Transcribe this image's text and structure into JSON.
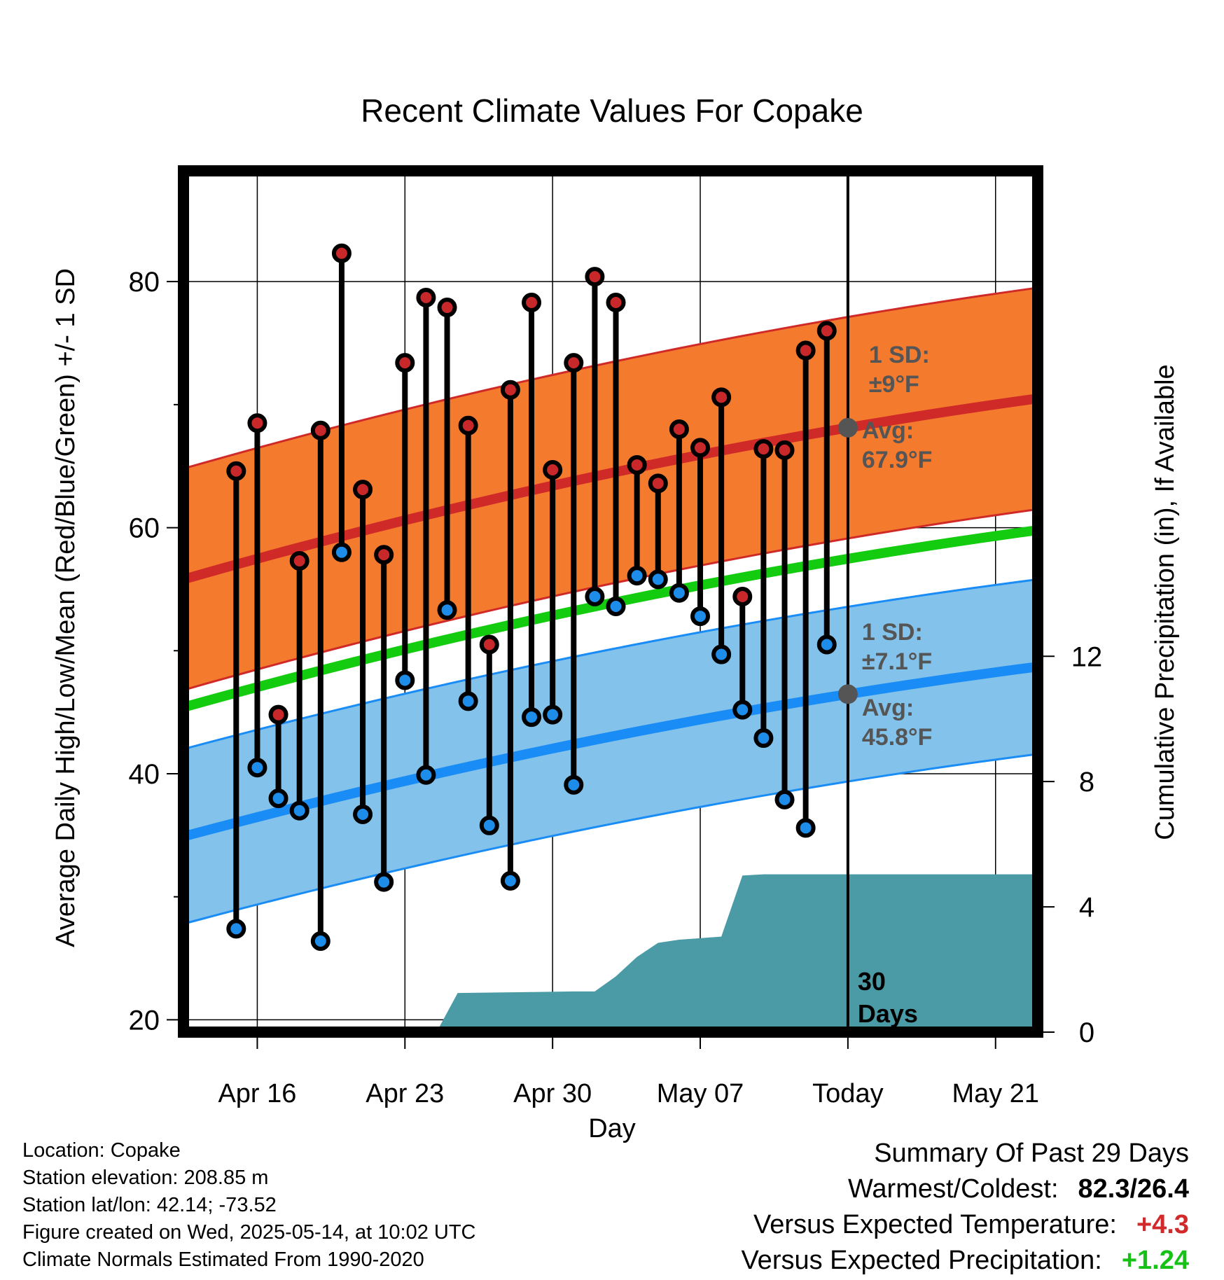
{
  "chart_data": {
    "type": "line",
    "title": "Recent Climate Values For Copake",
    "xlabel": "Day",
    "ylabel": "Average Daily High/Low/Mean (Red/Blue/Green) +/- 1 SD",
    "y2label": "Cumulative Precipitation (in), If Available",
    "x_tick_labels": [
      "Apr 16",
      "Apr 23",
      "Apr 30",
      "May 07",
      "Today",
      "May 21"
    ],
    "x_tick_days": [
      3,
      10,
      17,
      24,
      31,
      38
    ],
    "xlim": [
      -0.5,
      40
    ],
    "ylim": [
      19,
      89
    ],
    "yticks": [
      20,
      40,
      60,
      80
    ],
    "y2lim": [
      0,
      27.5
    ],
    "y2ticks": [
      0,
      4,
      8,
      12
    ],
    "grid": true,
    "today_day": 31,
    "today_label": [
      "30",
      "Days"
    ],
    "normals": {
      "days": [
        -0.5,
        40
      ],
      "high_mean": [
        55.8,
        70.5
      ],
      "high_sd": 9,
      "mean": [
        45.4,
        59.8
      ],
      "low_mean": [
        34.9,
        48.7
      ],
      "low_sd": 7.1
    },
    "observed": {
      "days": [
        2,
        3,
        4,
        5,
        6,
        7,
        8,
        9,
        10,
        11,
        12,
        13,
        14,
        15,
        16,
        17,
        18,
        19,
        20,
        21,
        22,
        23,
        24,
        25,
        26,
        27,
        28,
        29,
        30
      ],
      "highs": [
        64.6,
        68.5,
        44.8,
        57.3,
        67.9,
        82.3,
        63.1,
        57.8,
        73.4,
        78.7,
        77.9,
        68.3,
        50.5,
        71.2,
        78.3,
        64.7,
        73.4,
        80.4,
        78.3,
        65.1,
        63.6,
        68.0,
        66.5,
        70.6,
        54.4,
        66.4,
        66.3,
        74.4,
        76.0
      ],
      "lows": [
        27.4,
        40.5,
        38.0,
        37.0,
        26.4,
        58.0,
        36.7,
        31.2,
        47.6,
        39.9,
        53.3,
        45.9,
        35.8,
        31.3,
        44.6,
        44.8,
        39.1,
        54.4,
        53.6,
        56.1,
        55.8,
        54.7,
        52.8,
        49.7,
        45.2,
        42.9,
        37.9,
        35.6,
        50.5
      ]
    },
    "precipitation": {
      "days": [
        -0.5,
        11.5,
        12.5,
        16,
        18,
        19,
        20,
        21,
        22,
        23,
        24,
        25,
        26,
        27,
        31,
        40
      ],
      "cumulative": [
        0,
        0,
        1.25,
        1.28,
        1.3,
        1.3,
        1.78,
        2.4,
        2.85,
        2.95,
        3.0,
        3.05,
        5.0,
        5.04,
        5.04,
        5.04
      ]
    },
    "annotations": {
      "high_sd_label": "1 SD:",
      "high_sd_value": "±9°F",
      "high_avg_label": "Avg:",
      "high_avg_value": "67.9°F",
      "low_sd_label": "1 SD:",
      "low_sd_value": "±7.1°F",
      "low_avg_label": "Avg:",
      "low_avg_value": "45.8°F"
    },
    "colors": {
      "high_band": "#f47a2e",
      "high_line": "#d02a28",
      "mean_line": "#13cc0f",
      "low_band": "#83c2ea",
      "low_line": "#1a8cf5",
      "precip": "#4a9ba5",
      "high_dot": "#c8282a",
      "low_dot": "#1e8de9",
      "annotation": "#555555"
    }
  },
  "info": {
    "location": "Location: Copake",
    "elevation": "Station elevation: 208.85 m",
    "latlon": "Station lat/lon: 42.14; -73.52",
    "created": "Figure created on Wed, 2025-05-14, at 10:02 UTC",
    "normals": "Climate Normals Estimated From 1990-2020"
  },
  "summary": {
    "heading": "Summary Of Past 29 Days",
    "warm_cold_label": "Warmest/Coldest:",
    "warm_cold_value": "82.3/26.4",
    "temp_label": "Versus Expected Temperature:",
    "temp_value": "+4.3",
    "precip_label": "Versus Expected Precipitation:",
    "precip_value": "+1.24"
  }
}
